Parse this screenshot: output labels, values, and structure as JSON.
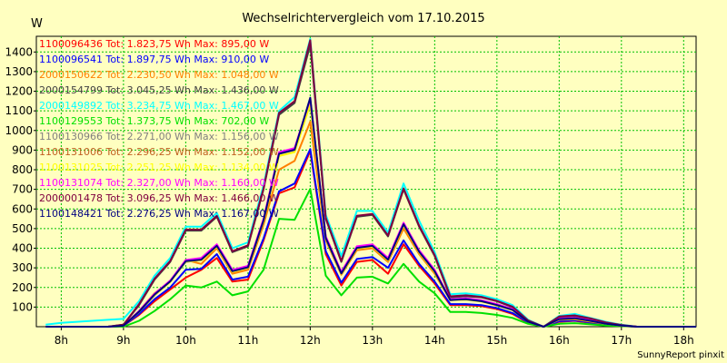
{
  "chart_data": {
    "type": "line",
    "title": "Wechselrichtervergleich vom 17.10.2015",
    "ylabel": "W",
    "xlabel": "",
    "footer": "SunnyReport pinxit",
    "ylim": [
      0,
      1480
    ],
    "xlim": [
      7.6,
      18.2
    ],
    "yticks": [
      100,
      200,
      300,
      400,
      500,
      600,
      700,
      800,
      900,
      1000,
      1100,
      1200,
      1300,
      1400
    ],
    "xticks": [
      8,
      9,
      10,
      11,
      12,
      13,
      14,
      15,
      16,
      17,
      18
    ],
    "xtick_labels": [
      "8h",
      "9h",
      "10h",
      "11h",
      "12h",
      "13h",
      "14h",
      "15h",
      "16h",
      "17h",
      "18h"
    ],
    "grid": true,
    "legend_position": "top-left",
    "x": [
      7.75,
      8.0,
      8.25,
      8.5,
      8.75,
      9.0,
      9.25,
      9.5,
      9.75,
      10.0,
      10.25,
      10.5,
      10.75,
      11.0,
      11.25,
      11.5,
      11.75,
      12.0,
      12.25,
      12.5,
      12.75,
      13.0,
      13.25,
      13.5,
      13.75,
      14.0,
      14.25,
      14.5,
      14.75,
      15.0,
      15.25,
      15.5,
      15.75,
      16.0,
      16.25,
      16.5,
      16.75,
      17.0,
      17.25,
      17.5,
      17.75,
      18.0,
      18.2
    ],
    "series": [
      {
        "name": "1100096436",
        "legend": "1100096436 Tot: 1.823,75 Wh Max: 895,00 W",
        "color": "#ff0000",
        "values": [
          0,
          0,
          0,
          0,
          0,
          5,
          60,
          130,
          190,
          250,
          290,
          350,
          230,
          240,
          440,
          680,
          710,
          895,
          370,
          210,
          330,
          340,
          270,
          420,
          310,
          220,
          110,
          110,
          105,
          90,
          65,
          20,
          0,
          25,
          30,
          20,
          10,
          5,
          0,
          0,
          0,
          0,
          0
        ]
      },
      {
        "name": "1100096541",
        "legend": "1100096541 Tot: 1.897,75 Wh Max: 910,00 W",
        "color": "#0000ff",
        "values": [
          0,
          0,
          0,
          0,
          0,
          5,
          65,
          140,
          200,
          290,
          295,
          370,
          240,
          255,
          450,
          690,
          730,
          905,
          385,
          225,
          345,
          355,
          300,
          440,
          320,
          230,
          115,
          115,
          110,
          95,
          70,
          22,
          0,
          28,
          32,
          22,
          12,
          5,
          0,
          0,
          0,
          0,
          0
        ]
      },
      {
        "name": "2000150622",
        "legend": "2000150622 Tot: 2.230,50 Wh Max: 1.048,00 W",
        "color": "#ff8000",
        "values": [
          0,
          0,
          0,
          0,
          0,
          5,
          80,
          170,
          230,
          340,
          320,
          400,
          270,
          290,
          520,
          800,
          845,
          1045,
          440,
          265,
          390,
          400,
          330,
          500,
          370,
          270,
          135,
          140,
          130,
          110,
          85,
          25,
          0,
          35,
          38,
          26,
          14,
          5,
          0,
          0,
          0,
          0,
          0
        ]
      },
      {
        "name": "2000154799",
        "legend": "2000154799 Tot: 3.045,25 Wh Max: 1.436,00 W",
        "color": "#404040",
        "values": [
          0,
          0,
          0,
          0,
          0,
          10,
          110,
          240,
          330,
          490,
          490,
          560,
          380,
          410,
          700,
          1080,
          1140,
          1436,
          550,
          330,
          560,
          570,
          460,
          700,
          510,
          360,
          150,
          155,
          150,
          130,
          100,
          30,
          0,
          50,
          55,
          40,
          20,
          8,
          0,
          0,
          0,
          0,
          0
        ]
      },
      {
        "name": "2000149892",
        "legend": "2000149892 Tot: 3.234,75 Wh Max: 1.467,00 W",
        "color": "#00ffff",
        "values": [
          10,
          20,
          25,
          30,
          35,
          40,
          130,
          260,
          350,
          510,
          510,
          580,
          400,
          430,
          720,
          1100,
          1170,
          1467,
          570,
          360,
          590,
          590,
          480,
          730,
          540,
          380,
          165,
          170,
          160,
          140,
          110,
          35,
          0,
          55,
          65,
          45,
          25,
          10,
          0,
          0,
          0,
          0,
          0
        ]
      },
      {
        "name": "1100129553",
        "legend": "1100129553 Tot: 1.373,75 Wh Max: 702,00 W",
        "color": "#00e000",
        "values": [
          0,
          0,
          0,
          0,
          0,
          0,
          30,
          80,
          140,
          210,
          200,
          230,
          160,
          180,
          290,
          550,
          545,
          702,
          260,
          160,
          250,
          255,
          220,
          320,
          230,
          170,
          75,
          75,
          70,
          60,
          45,
          15,
          0,
          15,
          18,
          12,
          6,
          3,
          0,
          0,
          0,
          0,
          0
        ]
      },
      {
        "name": "1100130966",
        "legend": "1100130966 Tot: 2.271,00 Wh Max: 1.156,00 W",
        "color": "#808080",
        "values": [
          0,
          0,
          0,
          0,
          0,
          5,
          75,
          160,
          230,
          330,
          340,
          410,
          280,
          300,
          540,
          880,
          900,
          1150,
          450,
          270,
          400,
          410,
          340,
          520,
          380,
          280,
          135,
          140,
          130,
          110,
          85,
          25,
          0,
          38,
          42,
          30,
          15,
          6,
          0,
          0,
          0,
          0,
          0
        ]
      },
      {
        "name": "1100131006",
        "legend": "1100131006 Tot: 2.296,25 Wh Max: 1.152,00 W",
        "color": "#c06020",
        "values": [
          0,
          0,
          0,
          0,
          0,
          5,
          78,
          165,
          232,
          335,
          345,
          415,
          285,
          305,
          545,
          885,
          905,
          1152,
          455,
          275,
          405,
          415,
          345,
          525,
          385,
          285,
          138,
          142,
          132,
          112,
          87,
          26,
          0,
          40,
          44,
          31,
          16,
          6,
          0,
          0,
          0,
          0,
          0
        ]
      },
      {
        "name": "1100131025",
        "legend": "1100131025 Tot: 2.251,25 Wh Max: 1.134,00 W",
        "color": "#ffff00",
        "values": [
          0,
          0,
          0,
          0,
          0,
          5,
          76,
          162,
          228,
          332,
          338,
          408,
          280,
          300,
          538,
          870,
          890,
          1134,
          448,
          270,
          398,
          408,
          338,
          518,
          378,
          278,
          135,
          138,
          128,
          108,
          84,
          25,
          0,
          38,
          41,
          29,
          15,
          6,
          0,
          0,
          0,
          0,
          0
        ]
      },
      {
        "name": "1100131074",
        "legend": "1100131074 Tot: 2.327,00 Wh Max: 1.160,00 W",
        "color": "#ff00ff",
        "values": [
          0,
          0,
          0,
          0,
          0,
          5,
          80,
          168,
          235,
          340,
          350,
          420,
          290,
          310,
          550,
          890,
          910,
          1160,
          460,
          280,
          410,
          420,
          350,
          530,
          390,
          290,
          140,
          145,
          135,
          115,
          90,
          27,
          0,
          42,
          46,
          33,
          17,
          7,
          0,
          0,
          0,
          0,
          0
        ]
      },
      {
        "name": "2000001478",
        "legend": "2000001478 Tot: 3.096,25 Wh Max: 1.466,00 W",
        "color": "#800040",
        "values": [
          0,
          0,
          0,
          0,
          0,
          10,
          115,
          245,
          335,
          495,
          495,
          565,
          385,
          415,
          705,
          1090,
          1150,
          1460,
          555,
          335,
          565,
          575,
          465,
          705,
          515,
          365,
          155,
          160,
          152,
          132,
          102,
          32,
          0,
          52,
          58,
          42,
          22,
          9,
          0,
          0,
          0,
          0,
          0
        ]
      },
      {
        "name": "1100148421",
        "legend": "1100148421 Tot: 2.276,25 Wh Max: 1.167,00 W",
        "color": "#000080",
        "values": [
          0,
          0,
          0,
          0,
          0,
          5,
          77,
          164,
          231,
          334,
          342,
          412,
          283,
          303,
          542,
          882,
          902,
          1167,
          452,
          272,
          402,
          412,
          342,
          522,
          382,
          282,
          136,
          140,
          130,
          110,
          86,
          25,
          0,
          39,
          43,
          30,
          15,
          6,
          0,
          0,
          0,
          0,
          0
        ]
      }
    ]
  }
}
